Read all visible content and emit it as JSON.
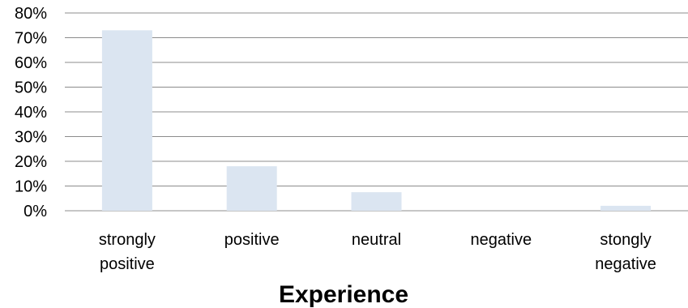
{
  "chart_data": {
    "type": "bar",
    "categories": [
      [
        "strongly",
        "positive"
      ],
      [
        "positive"
      ],
      [
        "neutral"
      ],
      [
        "negative"
      ],
      [
        "stongly",
        "negative"
      ]
    ],
    "values": [
      73,
      18,
      7.5,
      0,
      2
    ],
    "xlabel": "Experience",
    "ylabel": "",
    "ylim": [
      0,
      80
    ],
    "yticks": [
      0,
      10,
      20,
      30,
      40,
      50,
      60,
      70,
      80
    ],
    "ytick_labels": [
      "0%",
      "10%",
      "20%",
      "30%",
      "40%",
      "50%",
      "60%",
      "70%",
      "80%"
    ],
    "grid": true,
    "legend": "none",
    "bar_color": "#dbe5f1"
  }
}
